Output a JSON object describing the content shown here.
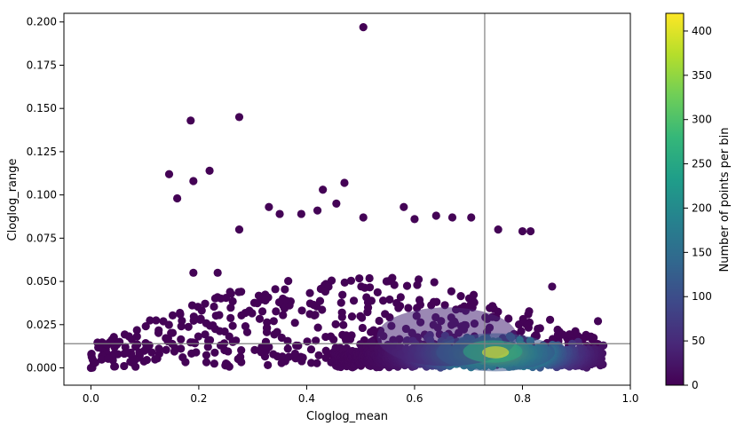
{
  "chart_data": {
    "type": "scatter",
    "title": "",
    "xlabel": "Cloglog_mean",
    "ylabel": "Cloglog_range",
    "xlim": [
      -0.05,
      1.0
    ],
    "ylim": [
      -0.01,
      0.205
    ],
    "xticks": [
      0.0,
      0.2,
      0.4,
      0.6,
      0.8,
      1.0
    ],
    "xtick_labels": [
      "0.0",
      "0.2",
      "0.4",
      "0.6",
      "0.8",
      "1.0"
    ],
    "yticks": [
      0.0,
      0.025,
      0.05,
      0.075,
      0.1,
      0.125,
      0.15,
      0.175,
      0.2
    ],
    "ytick_labels": [
      "0.000",
      "0.025",
      "0.050",
      "0.075",
      "0.100",
      "0.125",
      "0.150",
      "0.175",
      "0.200"
    ],
    "reference_lines": {
      "vertical_x": 0.73,
      "horizontal_y": 0.014,
      "color": "#808080"
    },
    "grid": false,
    "colorbar": {
      "label": "Number of points per bin",
      "range": [
        0,
        420
      ],
      "ticks": [
        0,
        50,
        100,
        150,
        200,
        250,
        300,
        350,
        400
      ],
      "tick_labels": [
        "0",
        "50",
        "100",
        "150",
        "200",
        "250",
        "300",
        "350",
        "400"
      ],
      "colormap": "viridis",
      "colors": [
        "#440154",
        "#482878",
        "#3e4989",
        "#31688e",
        "#26828e",
        "#1f9e89",
        "#35b779",
        "#6ece58",
        "#b5de2b",
        "#fde725"
      ]
    },
    "points": [
      {
        "x": 0.505,
        "y": 0.197,
        "c": 1
      },
      {
        "x": 0.185,
        "y": 0.143,
        "c": 1
      },
      {
        "x": 0.275,
        "y": 0.145,
        "c": 1
      },
      {
        "x": 0.145,
        "y": 0.112,
        "c": 1
      },
      {
        "x": 0.22,
        "y": 0.114,
        "c": 1
      },
      {
        "x": 0.19,
        "y": 0.108,
        "c": 1
      },
      {
        "x": 0.16,
        "y": 0.098,
        "c": 1
      },
      {
        "x": 0.43,
        "y": 0.103,
        "c": 1
      },
      {
        "x": 0.47,
        "y": 0.107,
        "c": 1
      },
      {
        "x": 0.275,
        "y": 0.08,
        "c": 2
      },
      {
        "x": 0.33,
        "y": 0.093,
        "c": 2
      },
      {
        "x": 0.35,
        "y": 0.089,
        "c": 2
      },
      {
        "x": 0.39,
        "y": 0.089,
        "c": 2
      },
      {
        "x": 0.42,
        "y": 0.091,
        "c": 2
      },
      {
        "x": 0.455,
        "y": 0.095,
        "c": 2
      },
      {
        "x": 0.505,
        "y": 0.087,
        "c": 2
      },
      {
        "x": 0.58,
        "y": 0.093,
        "c": 2
      },
      {
        "x": 0.6,
        "y": 0.086,
        "c": 3
      },
      {
        "x": 0.64,
        "y": 0.088,
        "c": 3
      },
      {
        "x": 0.67,
        "y": 0.087,
        "c": 3
      },
      {
        "x": 0.705,
        "y": 0.087,
        "c": 3
      },
      {
        "x": 0.755,
        "y": 0.08,
        "c": 3
      },
      {
        "x": 0.8,
        "y": 0.079,
        "c": 3
      },
      {
        "x": 0.815,
        "y": 0.079,
        "c": 3
      },
      {
        "x": 0.19,
        "y": 0.055,
        "c": 3
      },
      {
        "x": 0.235,
        "y": 0.055,
        "c": 3
      },
      {
        "x": 0.195,
        "y": 0.009,
        "c": 3
      },
      {
        "x": 0.0,
        "y": 0.0,
        "c": 8
      },
      {
        "x": 0.94,
        "y": 0.027,
        "c": 4
      },
      {
        "x": 0.95,
        "y": 0.013,
        "c": 6
      },
      {
        "x": 0.92,
        "y": 0.018,
        "c": 6
      },
      {
        "x": 0.855,
        "y": 0.047,
        "c": 6
      }
    ],
    "density_bins": [
      {
        "cx": 0.75,
        "cy": 0.009,
        "rx": 0.11,
        "ry": 0.011,
        "count": 110
      },
      {
        "cx": 0.745,
        "cy": 0.0095,
        "rx": 0.055,
        "ry": 0.0065,
        "count": 260
      },
      {
        "cx": 0.75,
        "cy": 0.009,
        "rx": 0.025,
        "ry": 0.0035,
        "count": 420
      },
      {
        "cx": 0.66,
        "cy": 0.018,
        "rx": 0.13,
        "ry": 0.017,
        "count": 45
      }
    ]
  }
}
